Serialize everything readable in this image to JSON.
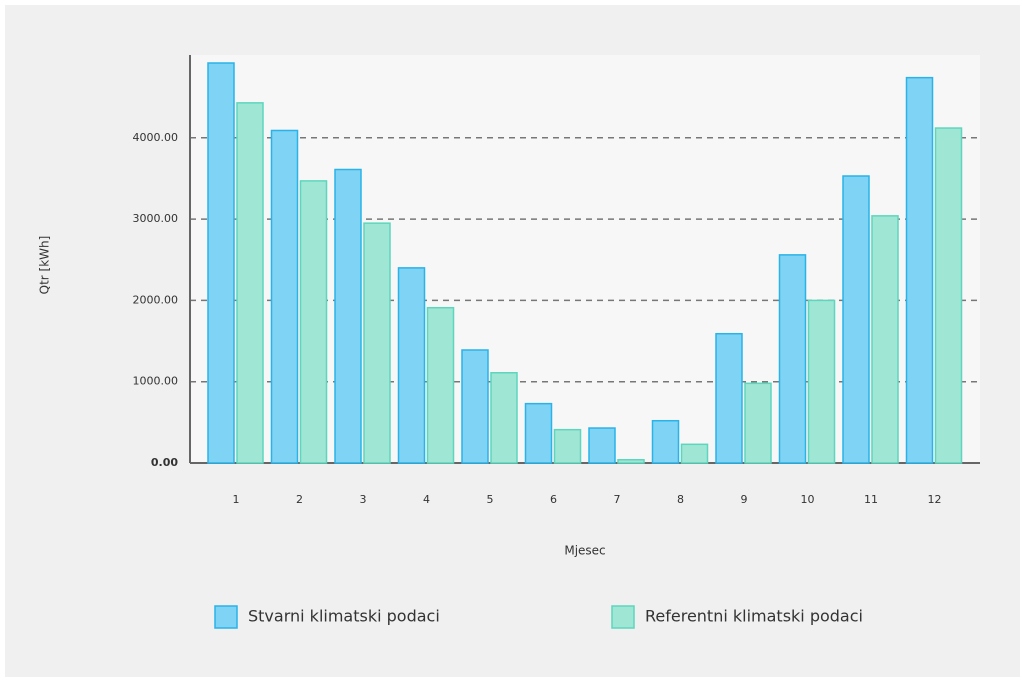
{
  "chart_data": {
    "type": "bar",
    "x_label": "Mjesec",
    "y_label": "Qtr [kWh]",
    "categories": [
      "1",
      "2",
      "3",
      "4",
      "5",
      "6",
      "7",
      "8",
      "9",
      "10",
      "11",
      "12"
    ],
    "series": [
      {
        "name": "Stvarni klimatski podaci",
        "color": "#7fd3f4",
        "values": [
          4920,
          4090,
          3610,
          2400,
          1390,
          730,
          430,
          520,
          1590,
          2560,
          3530,
          4740
        ]
      },
      {
        "name": "Referentni klimatski podaci",
        "color": "#9fe6d5",
        "values": [
          4430,
          3470,
          2950,
          1910,
          1110,
          410,
          40,
          230,
          980,
          2000,
          3040,
          4120
        ]
      }
    ],
    "ylim": [
      0,
      5000
    ],
    "yticks": [
      {
        "value": 0,
        "label": "0.00"
      },
      {
        "value": 1000,
        "label": "1000.00"
      },
      {
        "value": 2000,
        "label": "2000.00"
      },
      {
        "value": 3000,
        "label": "3000.00"
      },
      {
        "value": 4000,
        "label": "4000.00"
      }
    ],
    "grid": true,
    "legend": "bottom"
  }
}
